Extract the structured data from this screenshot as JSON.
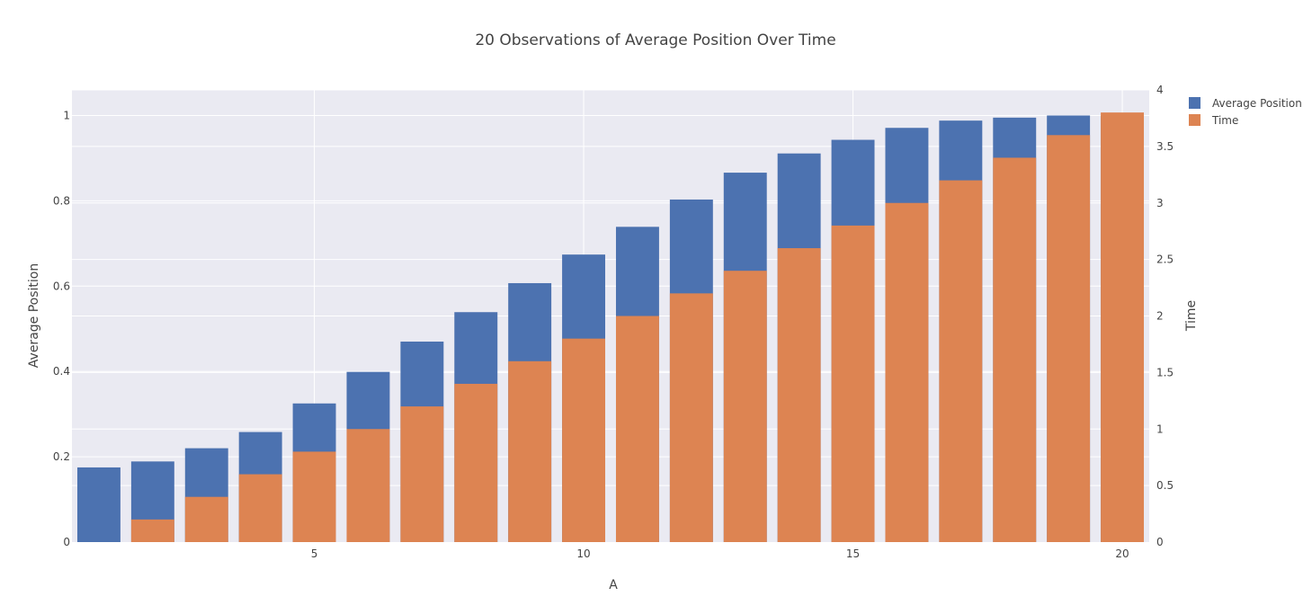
{
  "chart_data": {
    "type": "bar",
    "title": "20 Observations of Average Position Over Time",
    "xlabel": "A",
    "ylabel_left": "Average Position",
    "ylabel_right": "Time",
    "x": [
      1,
      2,
      3,
      4,
      5,
      6,
      7,
      8,
      9,
      10,
      11,
      12,
      13,
      14,
      15,
      16,
      17,
      18,
      19,
      20
    ],
    "xlim": [
      0.5,
      20.5
    ],
    "x_ticks": [
      5,
      10,
      15,
      20
    ],
    "y_left_lim": [
      0,
      1.06
    ],
    "y_left_ticks": [
      0,
      0.2,
      0.4,
      0.6,
      0.8,
      1
    ],
    "y_right_lim": [
      0,
      4
    ],
    "y_right_ticks": [
      0,
      0.5,
      1,
      1.5,
      2,
      2.5,
      3,
      3.5,
      4
    ],
    "grid": true,
    "legend_position": "top-right",
    "series": [
      {
        "name": "Average Position",
        "axis": "left",
        "color": "#4c72b0",
        "values": [
          0.175,
          0.189,
          0.22,
          0.258,
          0.325,
          0.399,
          0.47,
          0.539,
          0.607,
          0.674,
          0.739,
          0.803,
          0.866,
          0.911,
          0.943,
          0.971,
          0.988,
          0.995,
          1.0,
          1.0
        ]
      },
      {
        "name": "Time",
        "axis": "right",
        "color": "#dd8452",
        "values": [
          0.0,
          0.2,
          0.4,
          0.6,
          0.8,
          1.0,
          1.2,
          1.4,
          1.6,
          1.8,
          2.0,
          2.2,
          2.4,
          2.6,
          2.8,
          3.0,
          3.2,
          3.4,
          3.6,
          3.8
        ]
      }
    ]
  }
}
